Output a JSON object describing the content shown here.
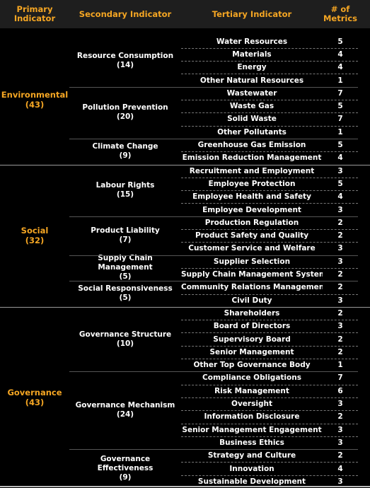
{
  "header": {
    "primary": "Primary\nIndicator",
    "secondary": "Secondary Indicator",
    "tertiary": "Tertiary Indicator",
    "metrics": "# of\nMetrics"
  },
  "groups": [
    {
      "name": "Environmental",
      "count": "(43)",
      "secondary": [
        {
          "name": "Resource Consumption",
          "count": "(14)",
          "tertiary": [
            {
              "name": "Water Resources",
              "metrics": "5"
            },
            {
              "name": "Materials",
              "metrics": "4"
            },
            {
              "name": "Energy",
              "metrics": "4"
            },
            {
              "name": "Other Natural Resources",
              "metrics": "1"
            }
          ]
        },
        {
          "name": "Pollution Prevention",
          "count": "(20)",
          "tertiary": [
            {
              "name": "Wastewater",
              "metrics": "7"
            },
            {
              "name": "Waste Gas",
              "metrics": "5"
            },
            {
              "name": "Solid Waste",
              "metrics": "7"
            },
            {
              "name": "Other Pollutants",
              "metrics": "1"
            }
          ]
        },
        {
          "name": "Climate Change",
          "count": "(9)",
          "tertiary": [
            {
              "name": "Greenhouse Gas Emission",
              "metrics": "5"
            },
            {
              "name": "Emission Reduction Management",
              "metrics": "4"
            }
          ]
        }
      ]
    },
    {
      "name": "Social",
      "count": "(32)",
      "secondary": [
        {
          "name": "Labour Rights",
          "count": "(15)",
          "tertiary": [
            {
              "name": "Recruitment and Employment",
              "metrics": "3"
            },
            {
              "name": "Employee Protection",
              "metrics": "5"
            },
            {
              "name": "Employee Health and Safety",
              "metrics": "4"
            },
            {
              "name": "Employee Development",
              "metrics": "3"
            }
          ]
        },
        {
          "name": "Product Liability",
          "count": "(7)",
          "tertiary": [
            {
              "name": "Production Regulation",
              "metrics": "2"
            },
            {
              "name": "Product Safety and Quality",
              "metrics": "2"
            },
            {
              "name": "Customer Service and Welfare",
              "metrics": "3"
            }
          ]
        },
        {
          "name": "Supply Chain\nManagement",
          "count": "(5)",
          "tertiary": [
            {
              "name": "Supplier Selection",
              "metrics": "3"
            },
            {
              "name": "Supply Chain Management System",
              "metrics": "2"
            }
          ]
        },
        {
          "name": "Social Responsiveness",
          "count": "(5)",
          "tertiary": [
            {
              "name": "Community Relations Management",
              "metrics": "2"
            },
            {
              "name": "Civil Duty",
              "metrics": "3"
            }
          ]
        }
      ]
    },
    {
      "name": "Governance",
      "count": "(43)",
      "secondary": [
        {
          "name": "Governance Structure",
          "count": "(10)",
          "tertiary": [
            {
              "name": "Shareholders",
              "metrics": "2"
            },
            {
              "name": "Board of Directors",
              "metrics": "3"
            },
            {
              "name": "Supervisory Board",
              "metrics": "2"
            },
            {
              "name": "Senior Management",
              "metrics": "2"
            },
            {
              "name": "Other Top Governance Body",
              "metrics": "1"
            }
          ]
        },
        {
          "name": "Governance Mechanism",
          "count": "(24)",
          "tertiary": [
            {
              "name": "Compliance Obligations",
              "metrics": "7"
            },
            {
              "name": "Risk Management",
              "metrics": "6"
            },
            {
              "name": "Oversight",
              "metrics": "3"
            },
            {
              "name": "Information Disclosure",
              "metrics": "2"
            },
            {
              "name": "Senior Management Engagement",
              "metrics": "3"
            },
            {
              "name": "Business Ethics",
              "metrics": "3"
            }
          ]
        },
        {
          "name": "Governance\nEffectiveness",
          "count": "(9)",
          "tertiary": [
            {
              "name": "Strategy and Culture",
              "metrics": "2"
            },
            {
              "name": "Innovation",
              "metrics": "4"
            },
            {
              "name": "Sustainable Development",
              "metrics": "3"
            }
          ]
        }
      ]
    }
  ]
}
